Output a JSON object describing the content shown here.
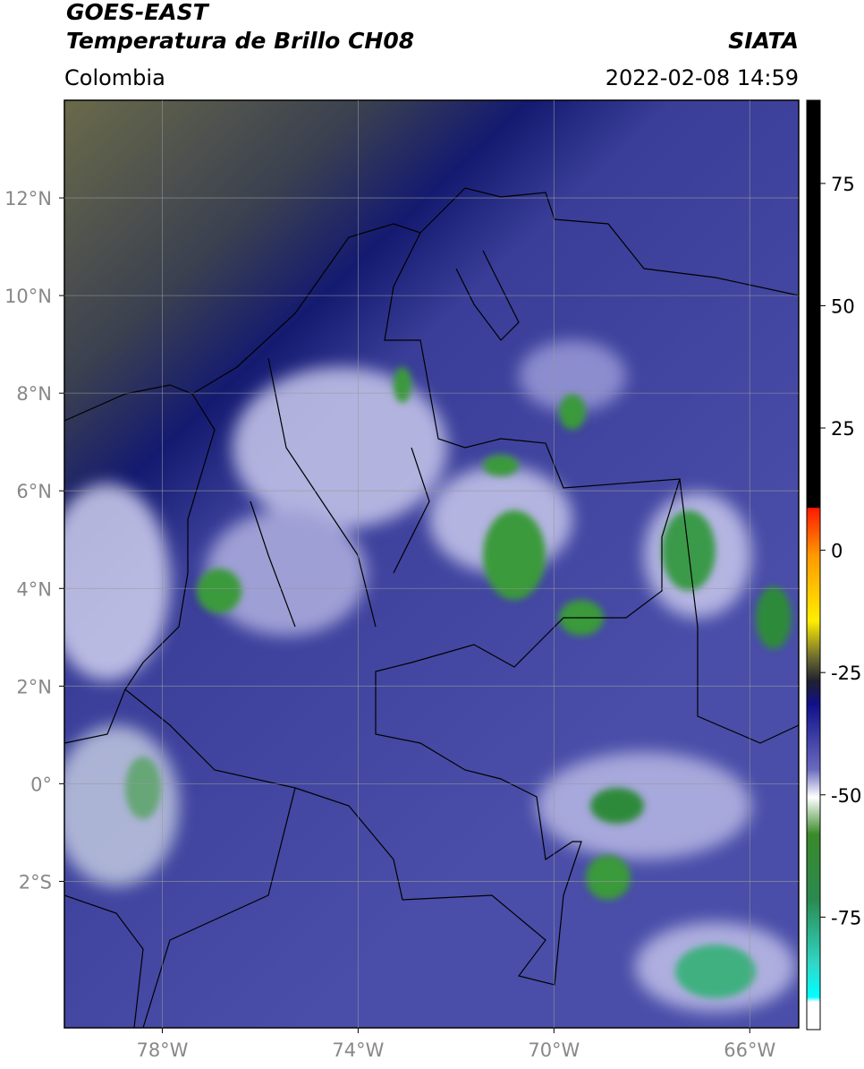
{
  "header": {
    "title": "GOES-EAST",
    "subtitle": "Temperatura de Brillo CH08",
    "region": "Colombia",
    "source": "SIATA",
    "datetime": "2022-02-08 14:59"
  },
  "map": {
    "lon_range": [
      -80,
      -65
    ],
    "lat_range": [
      -5,
      14
    ],
    "lon_ticks": [
      {
        "value": -78,
        "label": "78°W"
      },
      {
        "value": -74,
        "label": "74°W"
      },
      {
        "value": -70,
        "label": "70°W"
      },
      {
        "value": -66,
        "label": "66°W"
      }
    ],
    "lat_ticks": [
      {
        "value": 12,
        "label": "12°N"
      },
      {
        "value": 10,
        "label": "10°N"
      },
      {
        "value": 8,
        "label": "8°N"
      },
      {
        "value": 6,
        "label": "6°N"
      },
      {
        "value": 4,
        "label": "4°N"
      },
      {
        "value": 2,
        "label": "2°N"
      },
      {
        "value": 0,
        "label": "0°"
      },
      {
        "value": -2,
        "label": "2°S"
      }
    ],
    "grid": true
  },
  "colorbar": {
    "lim": [
      -98,
      92
    ],
    "ticks": [
      75,
      50,
      25,
      0,
      -25,
      -50,
      -75
    ]
  }
}
